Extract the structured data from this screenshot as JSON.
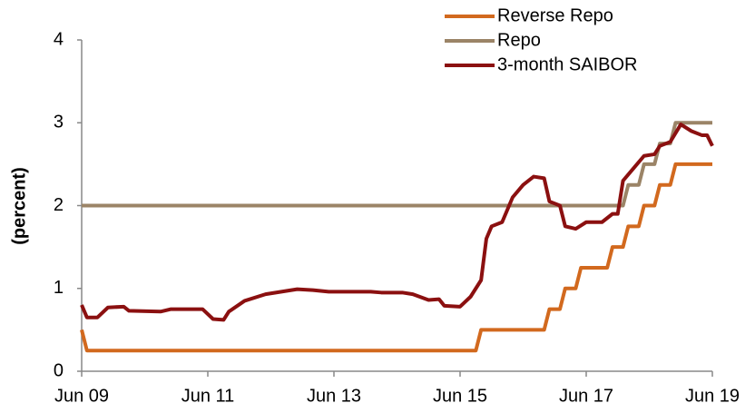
{
  "chart_data": {
    "type": "line",
    "ylabel": "(percent)",
    "xlim": [
      "2009-06",
      "2019-06"
    ],
    "xticks": [
      {
        "value": "2009-06",
        "label": "Jun 09"
      },
      {
        "value": "2011-06",
        "label": "Jun 11"
      },
      {
        "value": "2013-06",
        "label": "Jun 13"
      },
      {
        "value": "2015-06",
        "label": "Jun 15"
      },
      {
        "value": "2017-06",
        "label": "Jun 17"
      },
      {
        "value": "2019-06",
        "label": "Jun 19"
      }
    ],
    "ylim": [
      0,
      4
    ],
    "yticks": [
      0,
      1,
      2,
      3,
      4
    ],
    "grid": false,
    "legend": "top-right",
    "series": [
      {
        "name": "Reverse Repo",
        "color": "#d2691e",
        "x": [
          "2009-06",
          "2009-07",
          "2015-09",
          "2015-10",
          "2016-10",
          "2016-11",
          "2017-01",
          "2017-02",
          "2017-04",
          "2017-05",
          "2017-10",
          "2017-11",
          "2018-01",
          "2018-02",
          "2018-04",
          "2018-05",
          "2018-07",
          "2018-08",
          "2018-10",
          "2018-11",
          "2019-06"
        ],
        "values": [
          0.5,
          0.25,
          0.25,
          0.5,
          0.5,
          0.75,
          0.75,
          1.0,
          1.0,
          1.25,
          1.25,
          1.5,
          1.5,
          1.75,
          1.75,
          2.0,
          2.0,
          2.25,
          2.25,
          2.5,
          2.5
        ]
      },
      {
        "name": "Repo",
        "color": "#9b8467",
        "x": [
          "2009-06",
          "2018-01",
          "2018-02",
          "2018-04",
          "2018-05",
          "2018-07",
          "2018-08",
          "2018-10",
          "2018-11",
          "2019-06"
        ],
        "values": [
          2,
          2,
          2.25,
          2.25,
          2.5,
          2.5,
          2.75,
          2.75,
          3,
          3
        ]
      },
      {
        "name": "3-month SAIBOR",
        "color": "#8b1010",
        "x": [
          "2009-06",
          "2009-07",
          "2009-09",
          "2009-11",
          "2010-02",
          "2010-03",
          "2010-09",
          "2010-11",
          "2011-05",
          "2011-07",
          "2011-09",
          "2011-10",
          "2012-01",
          "2012-05",
          "2012-08",
          "2012-11",
          "2013-02",
          "2013-05",
          "2014-01",
          "2014-03",
          "2014-07",
          "2014-09",
          "2014-12",
          "2015-02",
          "2015-03",
          "2015-06",
          "2015-08",
          "2015-10",
          "2015-11",
          "2015-12",
          "2016-02",
          "2016-04",
          "2016-06",
          "2016-08",
          "2016-10",
          "2016-11",
          "2017-01",
          "2017-02",
          "2017-04",
          "2017-06",
          "2017-09",
          "2017-11",
          "2017-12",
          "2018-01",
          "2018-03",
          "2018-05",
          "2018-07",
          "2018-08",
          "2018-10",
          "2018-12",
          "2019-02",
          "2019-04",
          "2019-05",
          "2019-06"
        ],
        "values": [
          0.8,
          0.65,
          0.65,
          0.77,
          0.78,
          0.73,
          0.72,
          0.75,
          0.75,
          0.63,
          0.62,
          0.72,
          0.85,
          0.93,
          0.96,
          0.99,
          0.98,
          0.96,
          0.96,
          0.95,
          0.95,
          0.93,
          0.86,
          0.87,
          0.79,
          0.78,
          0.9,
          1.1,
          1.6,
          1.75,
          1.8,
          2.1,
          2.25,
          2.35,
          2.33,
          2.05,
          2.0,
          1.75,
          1.72,
          1.8,
          1.8,
          1.9,
          1.9,
          2.3,
          2.45,
          2.6,
          2.62,
          2.72,
          2.77,
          2.98,
          2.9,
          2.85,
          2.85,
          2.72
        ]
      }
    ]
  }
}
